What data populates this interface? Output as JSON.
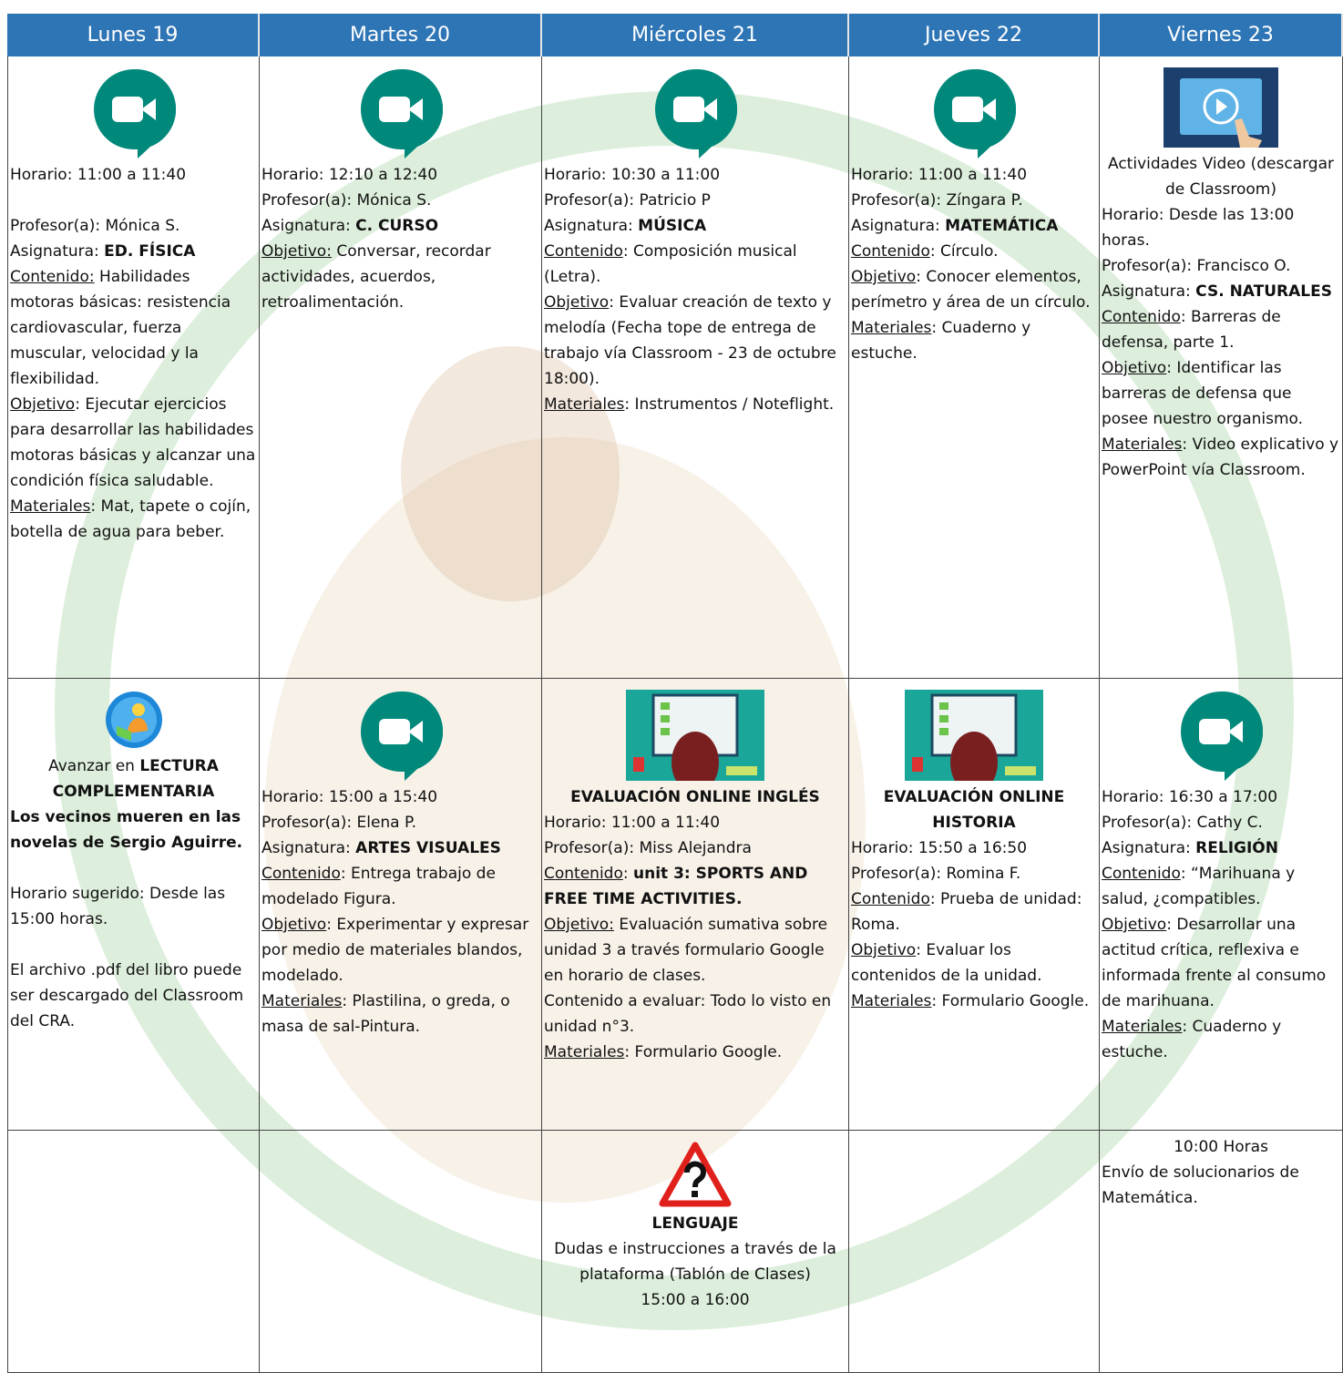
{
  "header": [
    "Lunes 19",
    "Martes 20",
    "Miércoles 21",
    "Jueves 22",
    "Viernes 23"
  ],
  "rows": [
    [
      {
        "body": [
          [
            [
              {
                "t": "Horario: 11:00 a 11:40"
              }
            ]
          ],
          [
            [
              {
                "t": "Profesor(a): Mónica S."
              }
            ],
            [
              {
                "t": "Asignatura: "
              },
              {
                "b": "ED. FÍSICA"
              }
            ],
            [
              {
                "u": "Contenido:"
              },
              {
                "t": " Habilidades motoras básicas: resistencia cardiovascular, fuerza muscular, velocidad y la flexibilidad."
              }
            ],
            [
              {
                "u": "Objetivo"
              },
              {
                "t": ": Ejecutar ejercicios para desarrollar las habilidades motoras básicas y alcanzar una condición física saludable."
              }
            ],
            [
              {
                "u": "Materiales"
              },
              {
                "t": ": Mat, tapete o cojín, botella de agua para beber."
              }
            ]
          ]
        ]
      },
      {
        "body": [
          [
            [
              {
                "t": "Horario: 12:10 a 12:40"
              }
            ],
            [
              {
                "t": "Profesor(a): Mónica S."
              }
            ],
            [
              {
                "t": "Asignatura: "
              },
              {
                "b": "C. CURSO"
              }
            ],
            [
              {
                "u": "Objetivo:"
              },
              {
                "t": " Conversar, recordar actividades, acuerdos, retroalimentación."
              }
            ]
          ]
        ]
      },
      {
        "body": [
          [
            [
              {
                "t": "Horario: 10:30 a 11:00"
              }
            ],
            [
              {
                "t": "Profesor(a): Patricio P"
              }
            ],
            [
              {
                "t": "Asignatura: "
              },
              {
                "b": "MÚSICA"
              }
            ],
            [
              {
                "u": "Contenido"
              },
              {
                "t": ": Composición musical (Letra)."
              }
            ],
            [
              {
                "u": "Objetivo"
              },
              {
                "t": ": Evaluar creación de texto y melodía (Fecha tope de entrega de trabajo vía Classroom - 23 de octubre 18:00)."
              }
            ],
            [
              {
                "u": "Materiales"
              },
              {
                "t": ": Instrumentos / Noteflight."
              }
            ]
          ]
        ]
      },
      {
        "body": [
          [
            [
              {
                "t": "Horario: 11:00 a 11:40"
              }
            ],
            [
              {
                "t": "Profesor(a): Zíngara P."
              }
            ],
            [
              {
                "t": "Asignatura: "
              },
              {
                "b": "MATEMÁTICA"
              }
            ],
            [
              {
                "u": "Contenido"
              },
              {
                "t": ": Círculo."
              }
            ],
            [
              {
                "u": "Objetivo"
              },
              {
                "t": ": Conocer elementos, perímetro y área de un círculo."
              }
            ],
            [
              {
                "u": "Materiales"
              },
              {
                "t": ": Cuaderno y estuche."
              }
            ]
          ]
        ]
      },
      {
        "heading": [
          [
            {
              "t": "Actividades Video (descargar de Classroom)"
            }
          ]
        ],
        "body": [
          [
            [
              {
                "t": "Horario: Desde las 13:00 horas."
              }
            ],
            [
              {
                "t": "Profesor(a): Francisco O."
              }
            ],
            [
              {
                "t": "Asignatura: "
              },
              {
                "b": "CS. NATURALES"
              }
            ],
            [
              {
                "u": "Contenido"
              },
              {
                "t": ": Barreras de defensa, parte 1."
              }
            ],
            [
              {
                "u": "Objetivo"
              },
              {
                "t": ": Identificar las barreras de defensa que posee nuestro organismo."
              }
            ],
            [
              {
                "u": "Materiales"
              },
              {
                "t": ": Video explicativo y PowerPoint vía Classroom."
              }
            ]
          ]
        ]
      }
    ],
    [
      {
        "heading": [
          [
            {
              "t": "Avanzar en "
            },
            {
              "b": "LECTURA COMPLEMENTARIA"
            }
          ]
        ],
        "body": [
          [
            [
              {
                "b": "Los vecinos mueren en las novelas de Sergio Aguirre."
              }
            ]
          ],
          [
            [
              {
                "t": "Horario sugerido: Desde las 15:00 horas."
              }
            ]
          ],
          [
            [
              {
                "t": "El archivo .pdf del libro puede ser descargado del Classroom del CRA."
              }
            ]
          ]
        ]
      },
      {
        "body": [
          [
            [
              {
                "t": "Horario: 15:00 a 15:40"
              }
            ],
            [
              {
                "t": "Profesor(a): Elena P."
              }
            ],
            [
              {
                "t": "Asignatura: "
              },
              {
                "b": "ARTES VISUALES"
              }
            ],
            [
              {
                "u": "Contenido"
              },
              {
                "t": ": Entrega trabajo de modelado Figura."
              }
            ],
            [
              {
                "u": "Objetivo"
              },
              {
                "t": ": Experimentar y expresar por medio de materiales blandos, modelado."
              }
            ],
            [
              {
                "u": "Materiales"
              },
              {
                "t": ": Plastilina, o greda, o masa de sal-Pintura."
              }
            ]
          ]
        ]
      },
      {
        "heading": [
          [
            {
              "b": "EVALUACIÓN ONLINE INGLÉS"
            }
          ]
        ],
        "body": [
          [
            [
              {
                "t": "Horario: 11:00 a 11:40"
              }
            ],
            [
              {
                "t": "Profesor(a): Miss Alejandra"
              }
            ],
            [
              {
                "u": "Contenido"
              },
              {
                "t": ": "
              },
              {
                "b": "unit 3: SPORTS AND FREE TIME ACTIVITIES."
              }
            ],
            [
              {
                "u": "Objetivo:"
              },
              {
                "t": " Evaluación sumativa sobre unidad 3 a través formulario Google en horario de clases."
              }
            ],
            [
              {
                "t": "Contenido a evaluar: Todo lo visto en unidad n°3."
              }
            ],
            [
              {
                "u": "Materiales"
              },
              {
                "t": ": Formulario Google."
              }
            ]
          ]
        ]
      },
      {
        "heading": [
          [
            {
              "b": "EVALUACIÓN ONLINE HISTORIA"
            }
          ]
        ],
        "body": [
          [
            [
              {
                "t": "Horario: 15:50 a 16:50"
              }
            ],
            [
              {
                "t": "Profesor(a): Romina F."
              }
            ],
            [
              {
                "u": "Contenido"
              },
              {
                "t": ": Prueba de unidad: Roma."
              }
            ],
            [
              {
                "u": "Objetivo"
              },
              {
                "t": ": Evaluar los contenidos de la unidad."
              }
            ],
            [
              {
                "u": "Materiales"
              },
              {
                "t": ": Formulario Google."
              }
            ]
          ]
        ]
      },
      {
        "body": [
          [
            [
              {
                "t": "Horario: 16:30 a 17:00"
              }
            ],
            [
              {
                "t": "Profesor(a): Cathy C."
              }
            ],
            [
              {
                "t": "Asignatura: "
              },
              {
                "b": "RELIGIÓN"
              }
            ],
            [
              {
                "u": "Contenido"
              },
              {
                "t": ": “Marihuana y salud, ¿compatibles."
              }
            ],
            [
              {
                "u": "Objetivo"
              },
              {
                "t": ": Desarrollar una actitud crítica, reflexiva e informada frente al consumo de marihuana."
              }
            ],
            [
              {
                "u": "Materiales"
              },
              {
                "t": ": Cuaderno y estuche."
              }
            ]
          ]
        ]
      }
    ],
    [
      {},
      {},
      {
        "heading": [
          [
            {
              "b": "LENGUAJE"
            }
          ],
          [
            {
              "t": "Dudas e instrucciones a través de la plataforma (Tablón de Clases)"
            }
          ],
          [
            {
              "t": "15:00 a 16:00"
            }
          ]
        ]
      },
      {},
      {
        "heading": [
          [
            {
              "t": "10:00 Horas"
            }
          ]
        ],
        "body": [
          [
            [
              {
                "t": "Envío de solucionarios de Matemática."
              }
            ]
          ]
        ]
      }
    ]
  ]
}
